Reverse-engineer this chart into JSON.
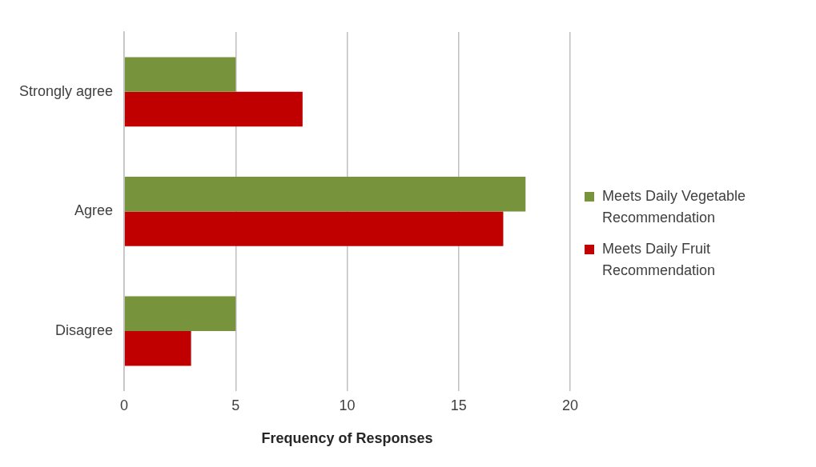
{
  "chart_data": {
    "type": "bar",
    "orientation": "horizontal",
    "xlabel": "Frequency of Responses",
    "categories": [
      "Strongly agree",
      "Agree",
      "Disagree"
    ],
    "series": [
      {
        "name": "Meets Daily Vegetable Recommendation",
        "color": "#77933c",
        "values": [
          5,
          18,
          5
        ]
      },
      {
        "name": "Meets Daily Fruit Recommendation",
        "color": "#c00000",
        "values": [
          8,
          17,
          3
        ]
      }
    ],
    "xlim": [
      0,
      20
    ],
    "xticks": [
      0,
      5,
      10,
      15,
      20
    ],
    "grid": "x",
    "legend": "right"
  }
}
